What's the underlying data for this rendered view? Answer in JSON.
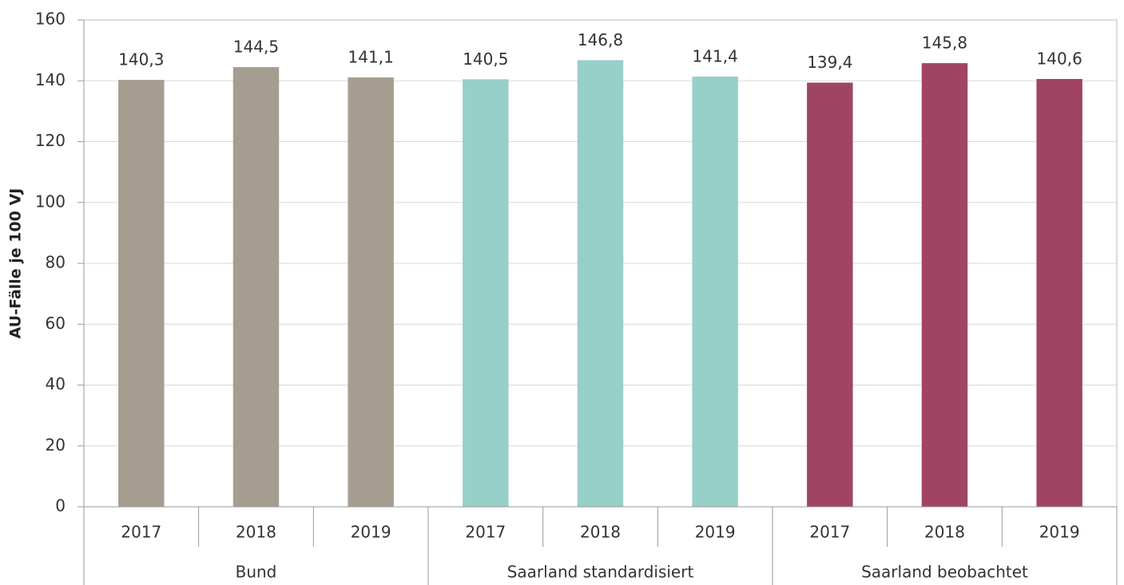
{
  "chart_data": {
    "type": "bar",
    "y_label": "AU-Fälle je 100 VJ",
    "ylim": [
      0,
      160
    ],
    "yticks": [
      0,
      20,
      40,
      60,
      80,
      100,
      120,
      140,
      160
    ],
    "grid": true,
    "groups": [
      {
        "name": "Bund",
        "color": "#a59d90",
        "categories": [
          "2017",
          "2018",
          "2019"
        ],
        "values": [
          140.3,
          144.5,
          141.1
        ],
        "value_labels": [
          "140,3",
          "144,5",
          "141,1"
        ]
      },
      {
        "name": "Saarland standardisiert",
        "color": "#97cfc9",
        "categories": [
          "2017",
          "2018",
          "2019"
        ],
        "values": [
          140.5,
          146.8,
          141.4
        ],
        "value_labels": [
          "140,5",
          "146,8",
          "141,4"
        ]
      },
      {
        "name": "Saarland beobachtet",
        "color": "#a04464",
        "categories": [
          "2017",
          "2018",
          "2019"
        ],
        "values": [
          139.4,
          145.8,
          140.6
        ],
        "value_labels": [
          "139,4",
          "145,8",
          "140,6"
        ]
      }
    ]
  }
}
